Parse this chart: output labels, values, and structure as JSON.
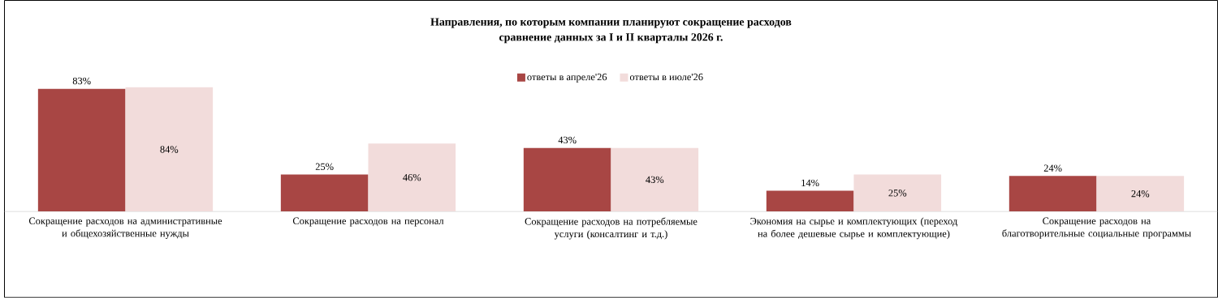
{
  "chart_data": {
    "type": "bar",
    "title": "Направления, по которым компании планируют сокращение расходов",
    "subtitle": "сравнение данных за I и II кварталы 2026 г.",
    "categories": [
      "Сокращение расходов на административные и общехозяйственные нужды",
      "Сокращение расходов на персонал",
      "Сокращение расходов на потребляемые услуги (консалтинг и т.д.)",
      "Экономия на сырье и комплектующих (переход на более дешевые сырье и комплектующие)",
      "Сокращение расходов на благотворительные социальные программы"
    ],
    "series": [
      {
        "name": "ответы в апреле'26",
        "color": "#a84644",
        "values": [
          83,
          25,
          43,
          14,
          24
        ],
        "value_labels": [
          "83%",
          "25%",
          "43%",
          "14%",
          "24%"
        ]
      },
      {
        "name": "ответы в июле'26",
        "color": "#f2dcdb",
        "values": [
          84,
          46,
          43,
          25,
          24
        ],
        "value_labels": [
          "84%",
          "46%",
          "43%",
          "25%",
          "24%"
        ]
      }
    ],
    "legend": "top"
  }
}
